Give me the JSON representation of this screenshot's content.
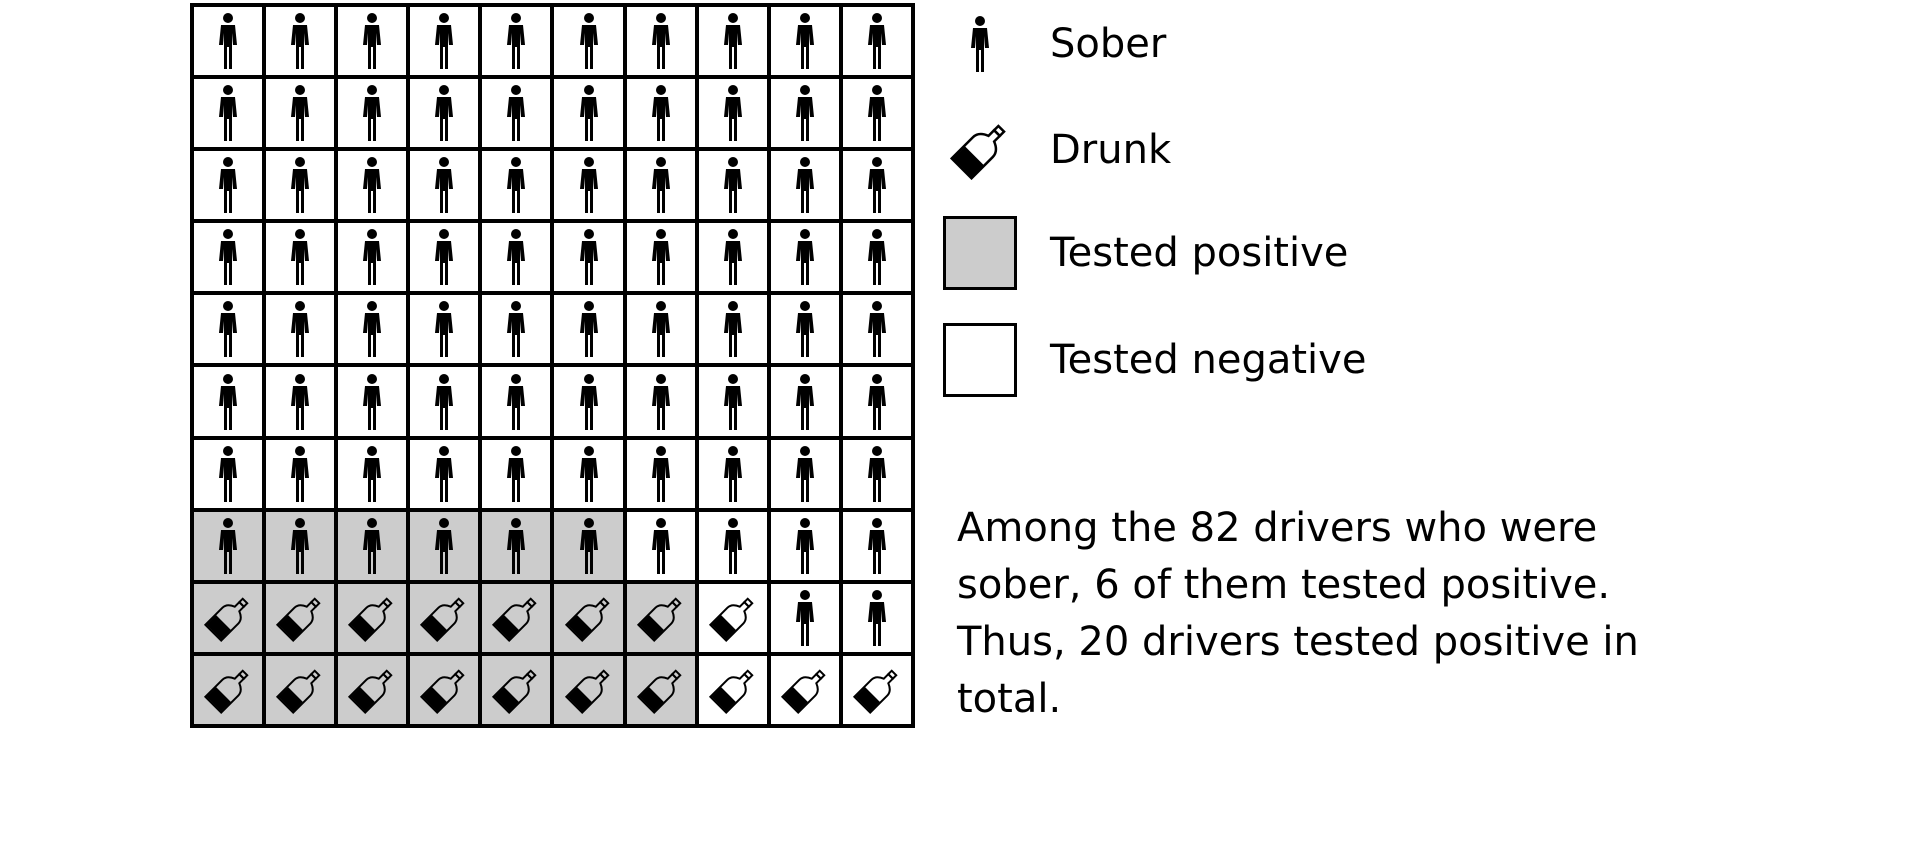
{
  "chart_data": {
    "type": "table",
    "rows": 10,
    "cols": 10,
    "cells": [
      [
        "sober-neg",
        "sober-neg",
        "sober-neg",
        "sober-neg",
        "sober-neg",
        "sober-neg",
        "sober-neg",
        "sober-neg",
        "sober-neg",
        "sober-neg"
      ],
      [
        "sober-neg",
        "sober-neg",
        "sober-neg",
        "sober-neg",
        "sober-neg",
        "sober-neg",
        "sober-neg",
        "sober-neg",
        "sober-neg",
        "sober-neg"
      ],
      [
        "sober-neg",
        "sober-neg",
        "sober-neg",
        "sober-neg",
        "sober-neg",
        "sober-neg",
        "sober-neg",
        "sober-neg",
        "sober-neg",
        "sober-neg"
      ],
      [
        "sober-neg",
        "sober-neg",
        "sober-neg",
        "sober-neg",
        "sober-neg",
        "sober-neg",
        "sober-neg",
        "sober-neg",
        "sober-neg",
        "sober-neg"
      ],
      [
        "sober-neg",
        "sober-neg",
        "sober-neg",
        "sober-neg",
        "sober-neg",
        "sober-neg",
        "sober-neg",
        "sober-neg",
        "sober-neg",
        "sober-neg"
      ],
      [
        "sober-neg",
        "sober-neg",
        "sober-neg",
        "sober-neg",
        "sober-neg",
        "sober-neg",
        "sober-neg",
        "sober-neg",
        "sober-neg",
        "sober-neg"
      ],
      [
        "sober-neg",
        "sober-neg",
        "sober-neg",
        "sober-neg",
        "sober-neg",
        "sober-neg",
        "sober-neg",
        "sober-neg",
        "sober-neg",
        "sober-neg"
      ],
      [
        "sober-pos",
        "sober-pos",
        "sober-pos",
        "sober-pos",
        "sober-pos",
        "sober-pos",
        "sober-neg",
        "sober-neg",
        "sober-neg",
        "sober-neg"
      ],
      [
        "drunk-pos",
        "drunk-pos",
        "drunk-pos",
        "drunk-pos",
        "drunk-pos",
        "drunk-pos",
        "drunk-pos",
        "drunk-neg",
        "sober-neg",
        "sober-neg"
      ],
      [
        "drunk-pos",
        "drunk-pos",
        "drunk-pos",
        "drunk-pos",
        "drunk-pos",
        "drunk-pos",
        "drunk-pos",
        "drunk-neg",
        "drunk-neg",
        "drunk-neg"
      ]
    ]
  },
  "legend": [
    {
      "label": "Sober",
      "icon": "person-icon",
      "kind": "icon-person"
    },
    {
      "label": "Drunk",
      "icon": "bottle-icon",
      "kind": "icon-bottle"
    },
    {
      "label": "Tested positive",
      "kind": "box",
      "fill": "#cccccc"
    },
    {
      "label": "Tested negative",
      "kind": "box",
      "fill": "#ffffff"
    }
  ],
  "caption": {
    "lines": [
      "Among the 82 drivers who were",
      "sober, 6 of them tested positive.",
      "Thus, 20 drivers tested positive in",
      "total."
    ]
  },
  "colors": {
    "positive": "#cccccc",
    "negative": "#ffffff",
    "ink": "#000000"
  }
}
